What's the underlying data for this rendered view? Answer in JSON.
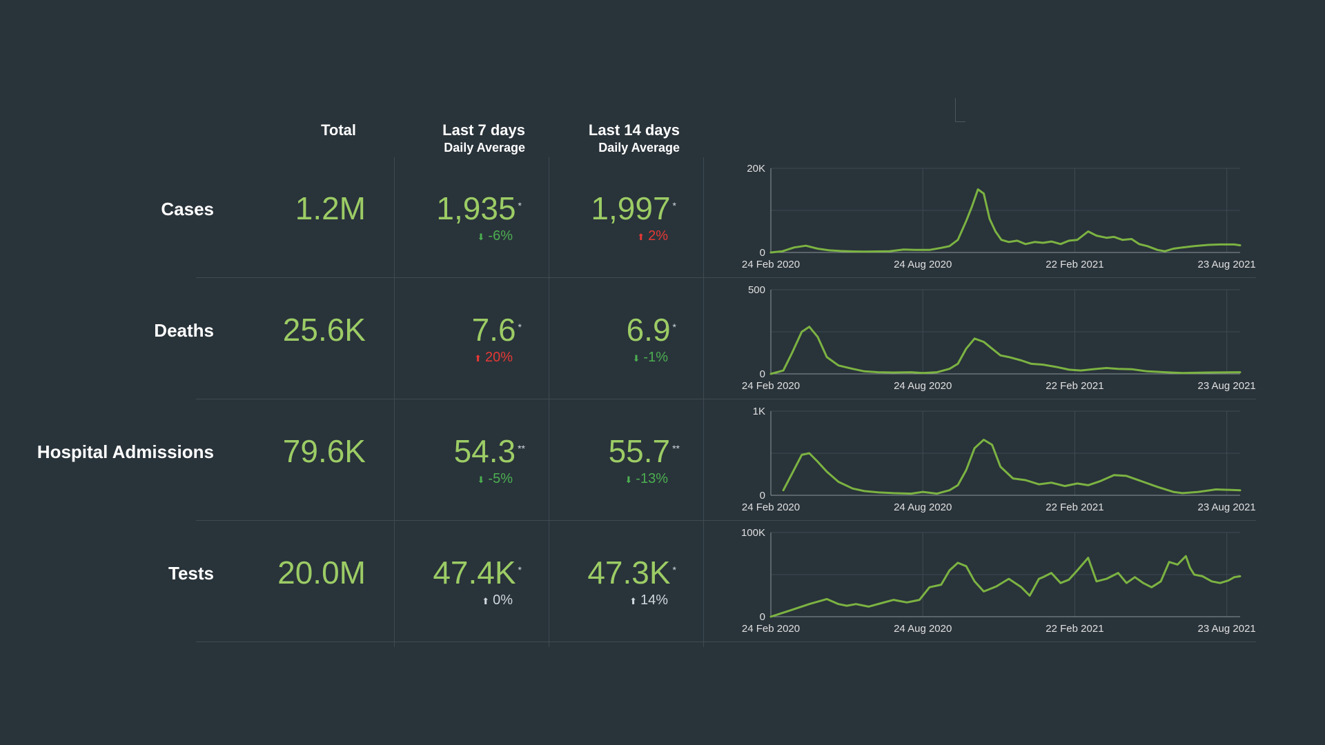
{
  "headers": {
    "total": "Total",
    "last7": "Last 7 days",
    "last7_sub": "Daily Average",
    "last14": "Last 14 days",
    "last14_sub": "Daily Average"
  },
  "rows": [
    {
      "label": "Cases",
      "total": "1.2M",
      "last7": "1,935",
      "last7_mark": "*",
      "last7_change": "-6%",
      "last7_dir": "down",
      "last7_status": "good",
      "last14": "1,997",
      "last14_mark": "*",
      "last14_change": "2%",
      "last14_dir": "up",
      "last14_status": "bad"
    },
    {
      "label": "Deaths",
      "total": "25.6K",
      "last7": "7.6",
      "last7_mark": "*",
      "last7_change": "20%",
      "last7_dir": "up",
      "last7_status": "bad",
      "last14": "6.9",
      "last14_mark": "*",
      "last14_change": "-1%",
      "last14_dir": "down",
      "last14_status": "good"
    },
    {
      "label": "Hospital Admissions",
      "total": "79.6K",
      "last7": "54.3",
      "last7_mark": "**",
      "last7_change": "-5%",
      "last7_dir": "down",
      "last7_status": "good",
      "last14": "55.7",
      "last14_mark": "**",
      "last14_change": "-13%",
      "last14_dir": "down",
      "last14_status": "good"
    },
    {
      "label": "Tests",
      "total": "20.0M",
      "last7": "47.4K",
      "last7_mark": "*",
      "last7_change": "0%",
      "last7_dir": "up",
      "last7_status": "neutral",
      "last14": "47.3K",
      "last14_mark": "*",
      "last14_change": "14%",
      "last14_dir": "up",
      "last14_status": "neutral"
    }
  ],
  "colors": {
    "background": "#29333a",
    "value": "#9ccc65",
    "good": "#4caf50",
    "bad": "#e53935",
    "neutral": "#cfd8dc",
    "line": "#7cb342",
    "grid": "#3e4a52"
  },
  "icons": {
    "up": "arrow-up-icon",
    "down": "arrow-down-icon"
  },
  "chart_data": [
    {
      "type": "line",
      "x_ticks": [
        "24 Feb 2020",
        "24 Aug 2020",
        "22 Feb 2021",
        "23 Aug 2021"
      ],
      "x_range": [
        "2020-02-24",
        "2021-09-08"
      ],
      "ylim": [
        0,
        20000
      ],
      "y_tick_labels": [
        "0",
        "20K"
      ],
      "y_ticks": [
        0,
        20000
      ],
      "grid": true,
      "x": [
        "2020-02-24",
        "2020-03-09",
        "2020-03-23",
        "2020-04-06",
        "2020-04-20",
        "2020-05-04",
        "2020-05-18",
        "2020-06-01",
        "2020-06-15",
        "2020-07-01",
        "2020-07-15",
        "2020-08-01",
        "2020-08-15",
        "2020-09-01",
        "2020-09-15",
        "2020-09-25",
        "2020-10-05",
        "2020-10-15",
        "2020-10-22",
        "2020-10-29",
        "2020-11-05",
        "2020-11-12",
        "2020-11-19",
        "2020-11-26",
        "2020-12-05",
        "2020-12-15",
        "2020-12-25",
        "2021-01-05",
        "2021-01-15",
        "2021-01-25",
        "2021-02-05",
        "2021-02-15",
        "2021-02-25",
        "2021-03-10",
        "2021-03-20",
        "2021-04-01",
        "2021-04-10",
        "2021-04-20",
        "2021-05-01",
        "2021-05-10",
        "2021-05-20",
        "2021-06-01",
        "2021-06-10",
        "2021-06-20",
        "2021-07-01",
        "2021-07-15",
        "2021-08-01",
        "2021-08-15",
        "2021-09-01",
        "2021-09-08"
      ],
      "y": [
        0,
        300,
        1200,
        1600,
        900,
        500,
        350,
        250,
        200,
        250,
        300,
        700,
        600,
        600,
        1100,
        1500,
        3000,
        7500,
        11000,
        15000,
        14000,
        8000,
        5000,
        3000,
        2500,
        2800,
        2000,
        2500,
        2300,
        2600,
        2000,
        2800,
        3000,
        5000,
        4000,
        3500,
        3700,
        3000,
        3200,
        2000,
        1500,
        600,
        300,
        900,
        1200,
        1500,
        1800,
        1900,
        1900,
        1700
      ]
    },
    {
      "type": "line",
      "x_ticks": [
        "24 Feb 2020",
        "24 Aug 2020",
        "22 Feb 2021",
        "23 Aug 2021"
      ],
      "x_range": [
        "2020-02-24",
        "2021-09-08"
      ],
      "ylim": [
        0,
        500
      ],
      "y_tick_labels": [
        "0",
        "500"
      ],
      "y_ticks": [
        0,
        500
      ],
      "grid": true,
      "x": [
        "2020-02-24",
        "2020-03-10",
        "2020-03-20",
        "2020-04-01",
        "2020-04-10",
        "2020-04-20",
        "2020-05-01",
        "2020-05-15",
        "2020-06-01",
        "2020-06-15",
        "2020-07-01",
        "2020-07-20",
        "2020-08-10",
        "2020-08-24",
        "2020-09-10",
        "2020-09-25",
        "2020-10-05",
        "2020-10-15",
        "2020-10-25",
        "2020-11-05",
        "2020-11-15",
        "2020-11-25",
        "2020-12-05",
        "2020-12-20",
        "2021-01-01",
        "2021-01-15",
        "2021-02-01",
        "2021-02-15",
        "2021-03-01",
        "2021-03-20",
        "2021-04-01",
        "2021-04-15",
        "2021-05-01",
        "2021-05-20",
        "2021-06-10",
        "2021-07-01",
        "2021-08-01",
        "2021-09-08"
      ],
      "y": [
        0,
        20,
        120,
        250,
        280,
        220,
        100,
        50,
        30,
        15,
        10,
        8,
        10,
        5,
        10,
        30,
        60,
        150,
        210,
        190,
        150,
        110,
        100,
        80,
        60,
        55,
        40,
        25,
        20,
        30,
        35,
        30,
        28,
        15,
        10,
        5,
        8,
        10
      ]
    },
    {
      "type": "line",
      "x_ticks": [
        "24 Feb 2020",
        "24 Aug 2020",
        "22 Feb 2021",
        "23 Aug 2021"
      ],
      "x_range": [
        "2020-02-24",
        "2021-09-08"
      ],
      "ylim": [
        0,
        1000
      ],
      "y_tick_labels": [
        "0",
        "1K"
      ],
      "y_ticks": [
        0,
        1000
      ],
      "grid": true,
      "x": [
        "2020-03-10",
        "2020-03-20",
        "2020-04-01",
        "2020-04-10",
        "2020-04-20",
        "2020-05-01",
        "2020-05-15",
        "2020-06-01",
        "2020-06-15",
        "2020-07-01",
        "2020-07-20",
        "2020-08-10",
        "2020-08-24",
        "2020-09-10",
        "2020-09-25",
        "2020-10-05",
        "2020-10-15",
        "2020-10-25",
        "2020-11-05",
        "2020-11-15",
        "2020-11-25",
        "2020-12-10",
        "2020-12-25",
        "2021-01-10",
        "2021-01-25",
        "2021-02-10",
        "2021-02-25",
        "2021-03-10",
        "2021-03-25",
        "2021-04-10",
        "2021-04-25",
        "2021-05-15",
        "2021-06-01",
        "2021-06-20",
        "2021-07-01",
        "2021-07-20",
        "2021-08-10",
        "2021-09-08"
      ],
      "y": [
        60,
        250,
        480,
        500,
        400,
        280,
        160,
        80,
        50,
        35,
        25,
        20,
        40,
        20,
        60,
        120,
        300,
        560,
        660,
        600,
        340,
        200,
        180,
        130,
        150,
        110,
        140,
        120,
        170,
        240,
        230,
        160,
        100,
        40,
        25,
        40,
        70,
        60
      ]
    },
    {
      "type": "line",
      "x_ticks": [
        "24 Feb 2020",
        "24 Aug 2020",
        "22 Feb 2021",
        "23 Aug 2021"
      ],
      "x_range": [
        "2020-02-24",
        "2021-09-08"
      ],
      "ylim": [
        0,
        100000
      ],
      "y_tick_labels": [
        "0",
        "100K"
      ],
      "y_ticks": [
        0,
        100000
      ],
      "grid": true,
      "x": [
        "2020-02-24",
        "2020-03-20",
        "2020-04-10",
        "2020-05-01",
        "2020-05-15",
        "2020-05-25",
        "2020-06-05",
        "2020-06-20",
        "2020-07-05",
        "2020-07-20",
        "2020-08-05",
        "2020-08-20",
        "2020-09-01",
        "2020-09-15",
        "2020-09-25",
        "2020-10-05",
        "2020-10-15",
        "2020-10-25",
        "2020-11-05",
        "2020-11-10",
        "2020-11-20",
        "2020-12-05",
        "2020-12-20",
        "2020-12-30",
        "2021-01-10",
        "2021-01-15",
        "2021-01-25",
        "2021-02-05",
        "2021-02-15",
        "2021-02-25",
        "2021-03-10",
        "2021-03-20",
        "2021-04-01",
        "2021-04-15",
        "2021-04-25",
        "2021-05-05",
        "2021-05-15",
        "2021-05-25",
        "2021-06-05",
        "2021-06-15",
        "2021-06-25",
        "2021-07-05",
        "2021-07-10",
        "2021-07-15",
        "2021-07-25",
        "2021-08-05",
        "2021-08-15",
        "2021-08-25",
        "2021-09-01",
        "2021-09-08"
      ],
      "y": [
        0,
        8000,
        15000,
        21000,
        15000,
        13000,
        15000,
        12000,
        16000,
        20000,
        17000,
        20000,
        35000,
        38000,
        55000,
        64000,
        60000,
        42000,
        30000,
        32000,
        36000,
        45000,
        35000,
        25000,
        45000,
        47000,
        52000,
        40000,
        44000,
        55000,
        70000,
        42000,
        45000,
        52000,
        40000,
        47000,
        40000,
        35000,
        42000,
        65000,
        62000,
        72000,
        58000,
        50000,
        48000,
        42000,
        40000,
        43000,
        47000,
        48000
      ]
    }
  ]
}
